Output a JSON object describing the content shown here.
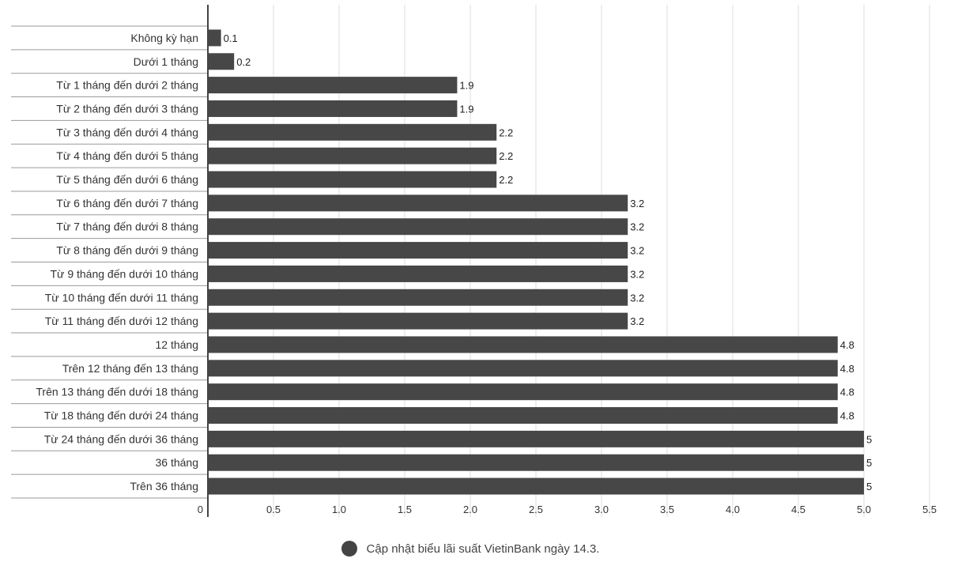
{
  "chart_data": {
    "type": "bar",
    "orientation": "horizontal",
    "categories": [
      "Không kỳ hạn",
      "Dưới 1 tháng",
      "Từ 1 tháng đến dưới 2 tháng",
      "Từ 2 tháng đến dưới 3 tháng",
      "Từ 3 tháng đến dưới 4 tháng",
      "Từ 4 tháng đến dưới 5 tháng",
      "Từ 5 tháng đến dưới 6 tháng",
      "Từ 6 tháng đến dưới 7 tháng",
      "Từ 7 tháng đến dưới 8 tháng",
      "Từ 8 tháng đến dưới 9 tháng",
      "Từ 9 tháng đến dưới 10 tháng",
      "Từ 10 tháng đến dưới 11 tháng",
      "Từ 11 tháng đến dưới 12 tháng",
      "12 tháng",
      "Trên 12 tháng đến 13 tháng",
      "Trên 13 tháng đến dưới 18 tháng",
      "Từ 18 tháng đến dưới 24 tháng",
      "Từ 24 tháng đến dưới 36 tháng",
      "36 tháng",
      "Trên 36 tháng"
    ],
    "values": [
      0.1,
      0.2,
      1.9,
      1.9,
      2.2,
      2.2,
      2.2,
      3.2,
      3.2,
      3.2,
      3.2,
      3.2,
      3.2,
      4.8,
      4.8,
      4.8,
      4.8,
      5,
      5,
      5
    ],
    "value_labels": [
      "0.1",
      "0.2",
      "1.9",
      "1.9",
      "2.2",
      "2.2",
      "2.2",
      "3.2",
      "3.2",
      "3.2",
      "3.2",
      "3.2",
      "3.2",
      "4.8",
      "4.8",
      "4.8",
      "4.8",
      "5",
      "5",
      "5"
    ],
    "xticks": [
      0,
      0.5,
      1.0,
      1.5,
      2.0,
      2.5,
      3.0,
      3.5,
      4.0,
      4.5,
      5.0,
      5.5
    ],
    "xtick_labels": [
      "0",
      "0.5",
      "1.0",
      "1.5",
      "2.0",
      "2.5",
      "3.0",
      "3.5",
      "4.0",
      "4.5",
      "5.0",
      "5.5"
    ],
    "xlim": [
      0,
      5.5
    ],
    "title": "",
    "xlabel": "",
    "ylabel": "",
    "grid": "vertical",
    "legend_position": "bottom-center",
    "legend": [
      "Cập nhật biểu lãi suất VietinBank ngày 14.3."
    ],
    "bar_color": "#474747"
  }
}
